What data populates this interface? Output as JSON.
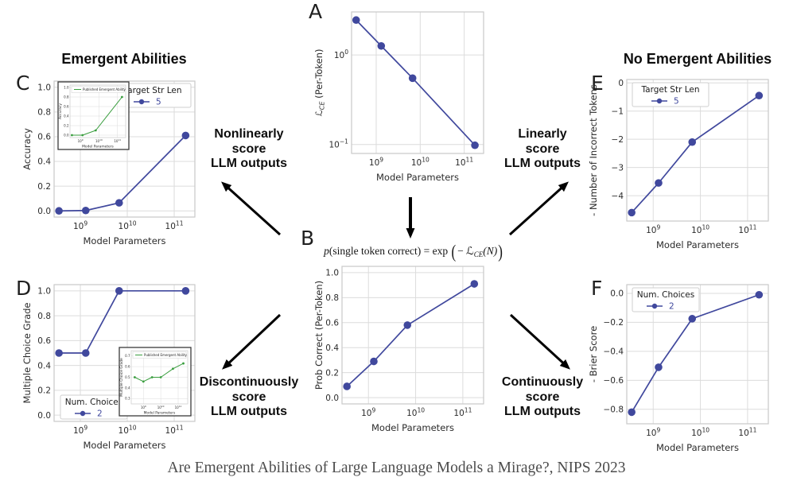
{
  "page": {
    "left_title": "Emergent Abilities",
    "right_title": "No Emergent Abilities",
    "caption": "Are Emergent Abilities of Large Language Models a Mirage?, NIPS 2023"
  },
  "panels": {
    "A": "A",
    "B": "B",
    "C": "C",
    "D": "D",
    "E": "E",
    "F": "F"
  },
  "annotations": {
    "nonlinear": [
      "Nonlinearly",
      "score",
      "LLM outputs"
    ],
    "linear": [
      "Linearly",
      "score",
      "LLM outputs"
    ],
    "discontinuous": [
      "Discontinuously",
      "score",
      "LLM outputs"
    ],
    "continuous": [
      "Continuously",
      "score",
      "LLM outputs"
    ]
  },
  "equation": {
    "p": "p",
    "mid": "(single token correct) = exp",
    "open": "(",
    "neg": "− ",
    "sym": "ℒ",
    "sub": "CE",
    "tail": "(N)",
    "close": ")"
  },
  "colors": {
    "line": "#40489d",
    "inset_line": "#3a9e3f",
    "grid": "#dcdcdc",
    "axis_border": "#c9c9c9",
    "tick_text": "#2b2b2b",
    "arrow": "#000000",
    "legend_border": "#cfcfcf",
    "inset_border": "#3a3a3a"
  },
  "chart_data": [
    {
      "id": "A",
      "type": "line",
      "color_key": "line",
      "x_log10": [
        8.544,
        9.114,
        9.826,
        11.243
      ],
      "y": [
        2.45,
        1.26,
        0.55,
        0.098
      ],
      "yscale": "log",
      "xlim": [
        8.44,
        11.44
      ],
      "ylim_log10": [
        -1.1,
        0.48
      ],
      "xticks_exp": [
        9,
        10,
        11
      ],
      "yticks_exp": [
        0,
        -1
      ],
      "xlabel": "Model Parameters",
      "ylabel_math": {
        "sym": "ℒ",
        "sub": "CE",
        "post": " (Per-Token)"
      }
    },
    {
      "id": "B",
      "type": "line",
      "color_key": "line",
      "x_log10": [
        8.544,
        9.114,
        9.826,
        11.243
      ],
      "y": [
        0.09,
        0.29,
        0.58,
        0.91
      ],
      "yscale": "linear",
      "xlim": [
        8.44,
        11.44
      ],
      "ylim": [
        -0.05,
        1.05
      ],
      "xticks_exp": [
        9,
        10,
        11
      ],
      "ytick_values": [
        0.0,
        0.2,
        0.4,
        0.6,
        0.8,
        1.0
      ],
      "ytick_labels": [
        "0.0",
        "0.2",
        "0.4",
        "0.6",
        "0.8",
        "1.0"
      ],
      "xlabel": "Model Parameters",
      "ylabel": "Prob Correct (Per-Token)"
    },
    {
      "id": "C",
      "type": "line",
      "color_key": "line",
      "x_log10": [
        8.544,
        9.114,
        9.826,
        11.243
      ],
      "y": [
        0.0,
        0.003,
        0.065,
        0.61
      ],
      "yscale": "linear",
      "xlim": [
        8.44,
        11.44
      ],
      "ylim": [
        -0.05,
        1.05
      ],
      "xticks_exp": [
        9,
        10,
        11
      ],
      "ytick_values": [
        0.0,
        0.2,
        0.4,
        0.6,
        0.8,
        1.0
      ],
      "ytick_labels": [
        "0.0",
        "0.2",
        "0.4",
        "0.6",
        "0.8",
        "1.0"
      ],
      "xlabel": "Model Parameters",
      "ylabel": "Accuracy",
      "legend": {
        "title": "Target Str Len",
        "entry": "5",
        "pos": "tr"
      },
      "inset": "C_inset"
    },
    {
      "id": "D",
      "type": "line",
      "color_key": "line",
      "x_log10": [
        8.544,
        9.114,
        9.826,
        11.243
      ],
      "y": [
        0.5,
        0.5,
        1.0,
        1.0
      ],
      "yscale": "linear",
      "xlim": [
        8.44,
        11.44
      ],
      "ylim": [
        -0.05,
        1.05
      ],
      "xticks_exp": [
        9,
        10,
        11
      ],
      "ytick_values": [
        0.0,
        0.2,
        0.4,
        0.6,
        0.8,
        1.0
      ],
      "ytick_labels": [
        "0.0",
        "0.2",
        "0.4",
        "0.6",
        "0.8",
        "1.0"
      ],
      "xlabel": "Model Parameters",
      "ylabel": "Multiple Choice Grade",
      "legend": {
        "title": "Num. Choices",
        "entry": "2",
        "pos": "bl"
      },
      "inset": "D_inset"
    },
    {
      "id": "E",
      "type": "line",
      "color_key": "line",
      "x_log10": [
        8.544,
        9.114,
        9.826,
        11.243
      ],
      "y": [
        -4.6,
        -3.55,
        -2.1,
        -0.45
      ],
      "yscale": "linear",
      "xlim": [
        8.44,
        11.44
      ],
      "ylim": [
        -4.9,
        0.12
      ],
      "xticks_exp": [
        9,
        10,
        11
      ],
      "ytick_values": [
        0,
        -1,
        -2,
        -3,
        -4
      ],
      "ytick_labels": [
        "0",
        "−1",
        "−2",
        "−3",
        "−4"
      ],
      "xlabel": "Model Parameters",
      "ylabel": "- Number of Incorrect Tokens",
      "legend": {
        "title": "Target Str Len",
        "entry": "5",
        "pos": "tl"
      }
    },
    {
      "id": "F",
      "type": "line",
      "color_key": "line",
      "x_log10": [
        8.544,
        9.114,
        9.826,
        11.243
      ],
      "y": [
        -0.82,
        -0.51,
        -0.175,
        -0.01
      ],
      "yscale": "linear",
      "xlim": [
        8.44,
        11.44
      ],
      "ylim": [
        -0.9,
        0.06
      ],
      "xticks_exp": [
        9,
        10,
        11
      ],
      "ytick_values": [
        0.0,
        -0.2,
        -0.4,
        -0.6,
        -0.8
      ],
      "ytick_labels": [
        "0.0",
        "−0.2",
        "−0.4",
        "−0.6",
        "−0.8"
      ],
      "xlabel": "Model Parameters",
      "ylabel": "- Brier Score",
      "legend": {
        "title": "Num. Choices",
        "entry": "2",
        "pos": "tl"
      }
    },
    {
      "id": "C_inset",
      "type": "line",
      "color_key": "inset_line",
      "is_inset": true,
      "x_log10": [
        8.544,
        9.114,
        9.826,
        11.243
      ],
      "y": [
        0.0,
        0.0,
        0.1,
        0.8
      ],
      "yscale": "linear",
      "xlim": [
        8.44,
        11.44
      ],
      "ylim": [
        -0.05,
        1.05
      ],
      "xticks_exp": [
        9,
        10,
        11
      ],
      "ytick_values": [
        0.0,
        0.2,
        0.4,
        0.6,
        0.8,
        1.0
      ],
      "ytick_labels": [
        "0.0",
        "0.2",
        "0.4",
        "0.6",
        "0.8",
        "1.0"
      ],
      "xlabel": "Model Parameters",
      "ylabel": "Accuracy",
      "legend_line": {
        "label": "Published Emergent Ability"
      }
    },
    {
      "id": "D_inset",
      "type": "line",
      "color_key": "inset_line",
      "is_inset": true,
      "x_log10": [
        8.5,
        9.0,
        9.5,
        10.0,
        10.7,
        11.3
      ],
      "y": [
        0.5,
        0.46,
        0.5,
        0.5,
        0.58,
        0.63
      ],
      "yscale": "linear",
      "xlim": [
        8.3,
        11.55
      ],
      "ylim": [
        0.25,
        0.75
      ],
      "xticks_exp": [
        9,
        10,
        11
      ],
      "ytick_values": [
        0.3,
        0.4,
        0.5,
        0.6,
        0.7
      ],
      "ytick_labels": [
        "0.3",
        "0.4",
        "0.5",
        "0.6",
        "0.7"
      ],
      "xlabel": "Model Parameters",
      "ylabel": "Multiple Choice Grade",
      "legend_line": {
        "label": "Published Emergent Ability"
      }
    }
  ]
}
